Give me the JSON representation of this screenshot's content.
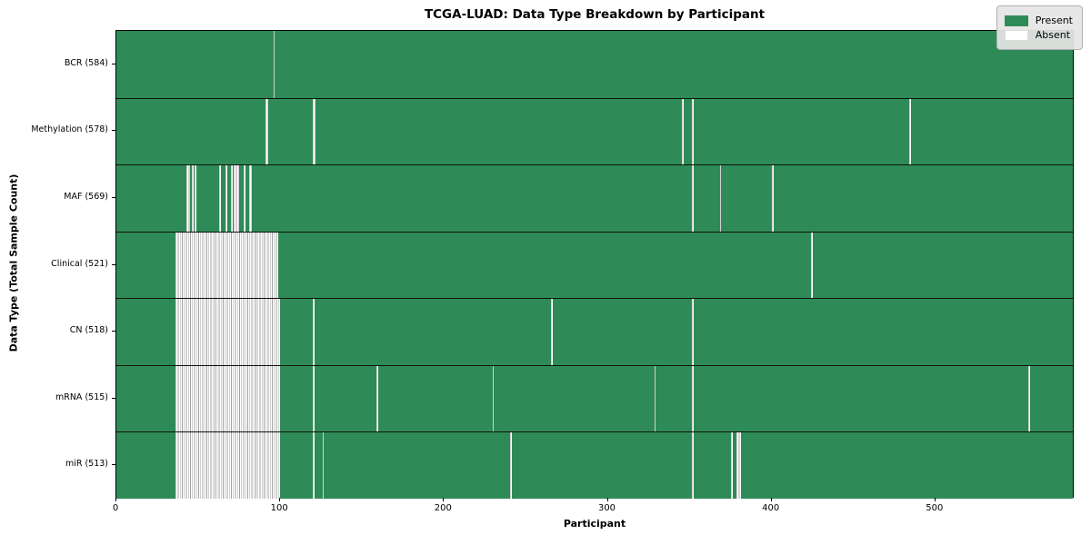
{
  "chart_data": {
    "type": "heatmap",
    "title": "TCGA-LUAD: Data Type Breakdown by Participant",
    "xlabel": "Participant",
    "ylabel": "Data Type (Total Sample Count)",
    "x_range": [
      0,
      585
    ],
    "x_ticks": [
      0,
      100,
      200,
      300,
      400,
      500
    ],
    "total_participants": 585,
    "grid": "off",
    "legend_position": "upper right",
    "legend": [
      {
        "label": "Present",
        "color": "#2e8b57"
      },
      {
        "label": "Absent",
        "color": "#ffffff"
      }
    ],
    "rows": [
      {
        "label": "BCR (584)",
        "data_type": "BCR",
        "sample_count": 584,
        "absent_ranges": [
          [
            96,
            96
          ]
        ]
      },
      {
        "label": "Methylation (578)",
        "data_type": "Methylation",
        "sample_count": 578,
        "absent_ranges": [
          [
            91,
            92
          ],
          [
            120,
            121
          ],
          [
            346,
            346
          ],
          [
            352,
            352
          ],
          [
            485,
            485
          ]
        ]
      },
      {
        "label": "MAF (569)",
        "data_type": "MAF",
        "sample_count": 569,
        "absent_ranges": [
          [
            43,
            44
          ],
          [
            46,
            46
          ],
          [
            48,
            48
          ],
          [
            63,
            63
          ],
          [
            67,
            67
          ],
          [
            70,
            70
          ],
          [
            72,
            74
          ],
          [
            78,
            78
          ],
          [
            81,
            82
          ],
          [
            352,
            352
          ],
          [
            369,
            369
          ],
          [
            401,
            401
          ]
        ]
      },
      {
        "label": "Clinical (521)",
        "data_type": "Clinical",
        "sample_count": 521,
        "absent_ranges": [
          [
            36,
            98
          ],
          [
            425,
            425
          ]
        ]
      },
      {
        "label": "CN (518)",
        "data_type": "CN",
        "sample_count": 518,
        "absent_ranges": [
          [
            36,
            99
          ],
          [
            120,
            120
          ],
          [
            266,
            266
          ],
          [
            352,
            352
          ]
        ]
      },
      {
        "label": "mRNA (515)",
        "data_type": "mRNA",
        "sample_count": 515,
        "absent_ranges": [
          [
            36,
            99
          ],
          [
            120,
            120
          ],
          [
            159,
            159
          ],
          [
            230,
            230
          ],
          [
            329,
            329
          ],
          [
            352,
            352
          ],
          [
            558,
            558
          ]
        ]
      },
      {
        "label": "miR (513)",
        "data_type": "miR",
        "sample_count": 513,
        "absent_ranges": [
          [
            36,
            99
          ],
          [
            120,
            120
          ],
          [
            126,
            126
          ],
          [
            241,
            241
          ],
          [
            352,
            352
          ],
          [
            376,
            376
          ],
          [
            379,
            381
          ]
        ]
      }
    ]
  }
}
